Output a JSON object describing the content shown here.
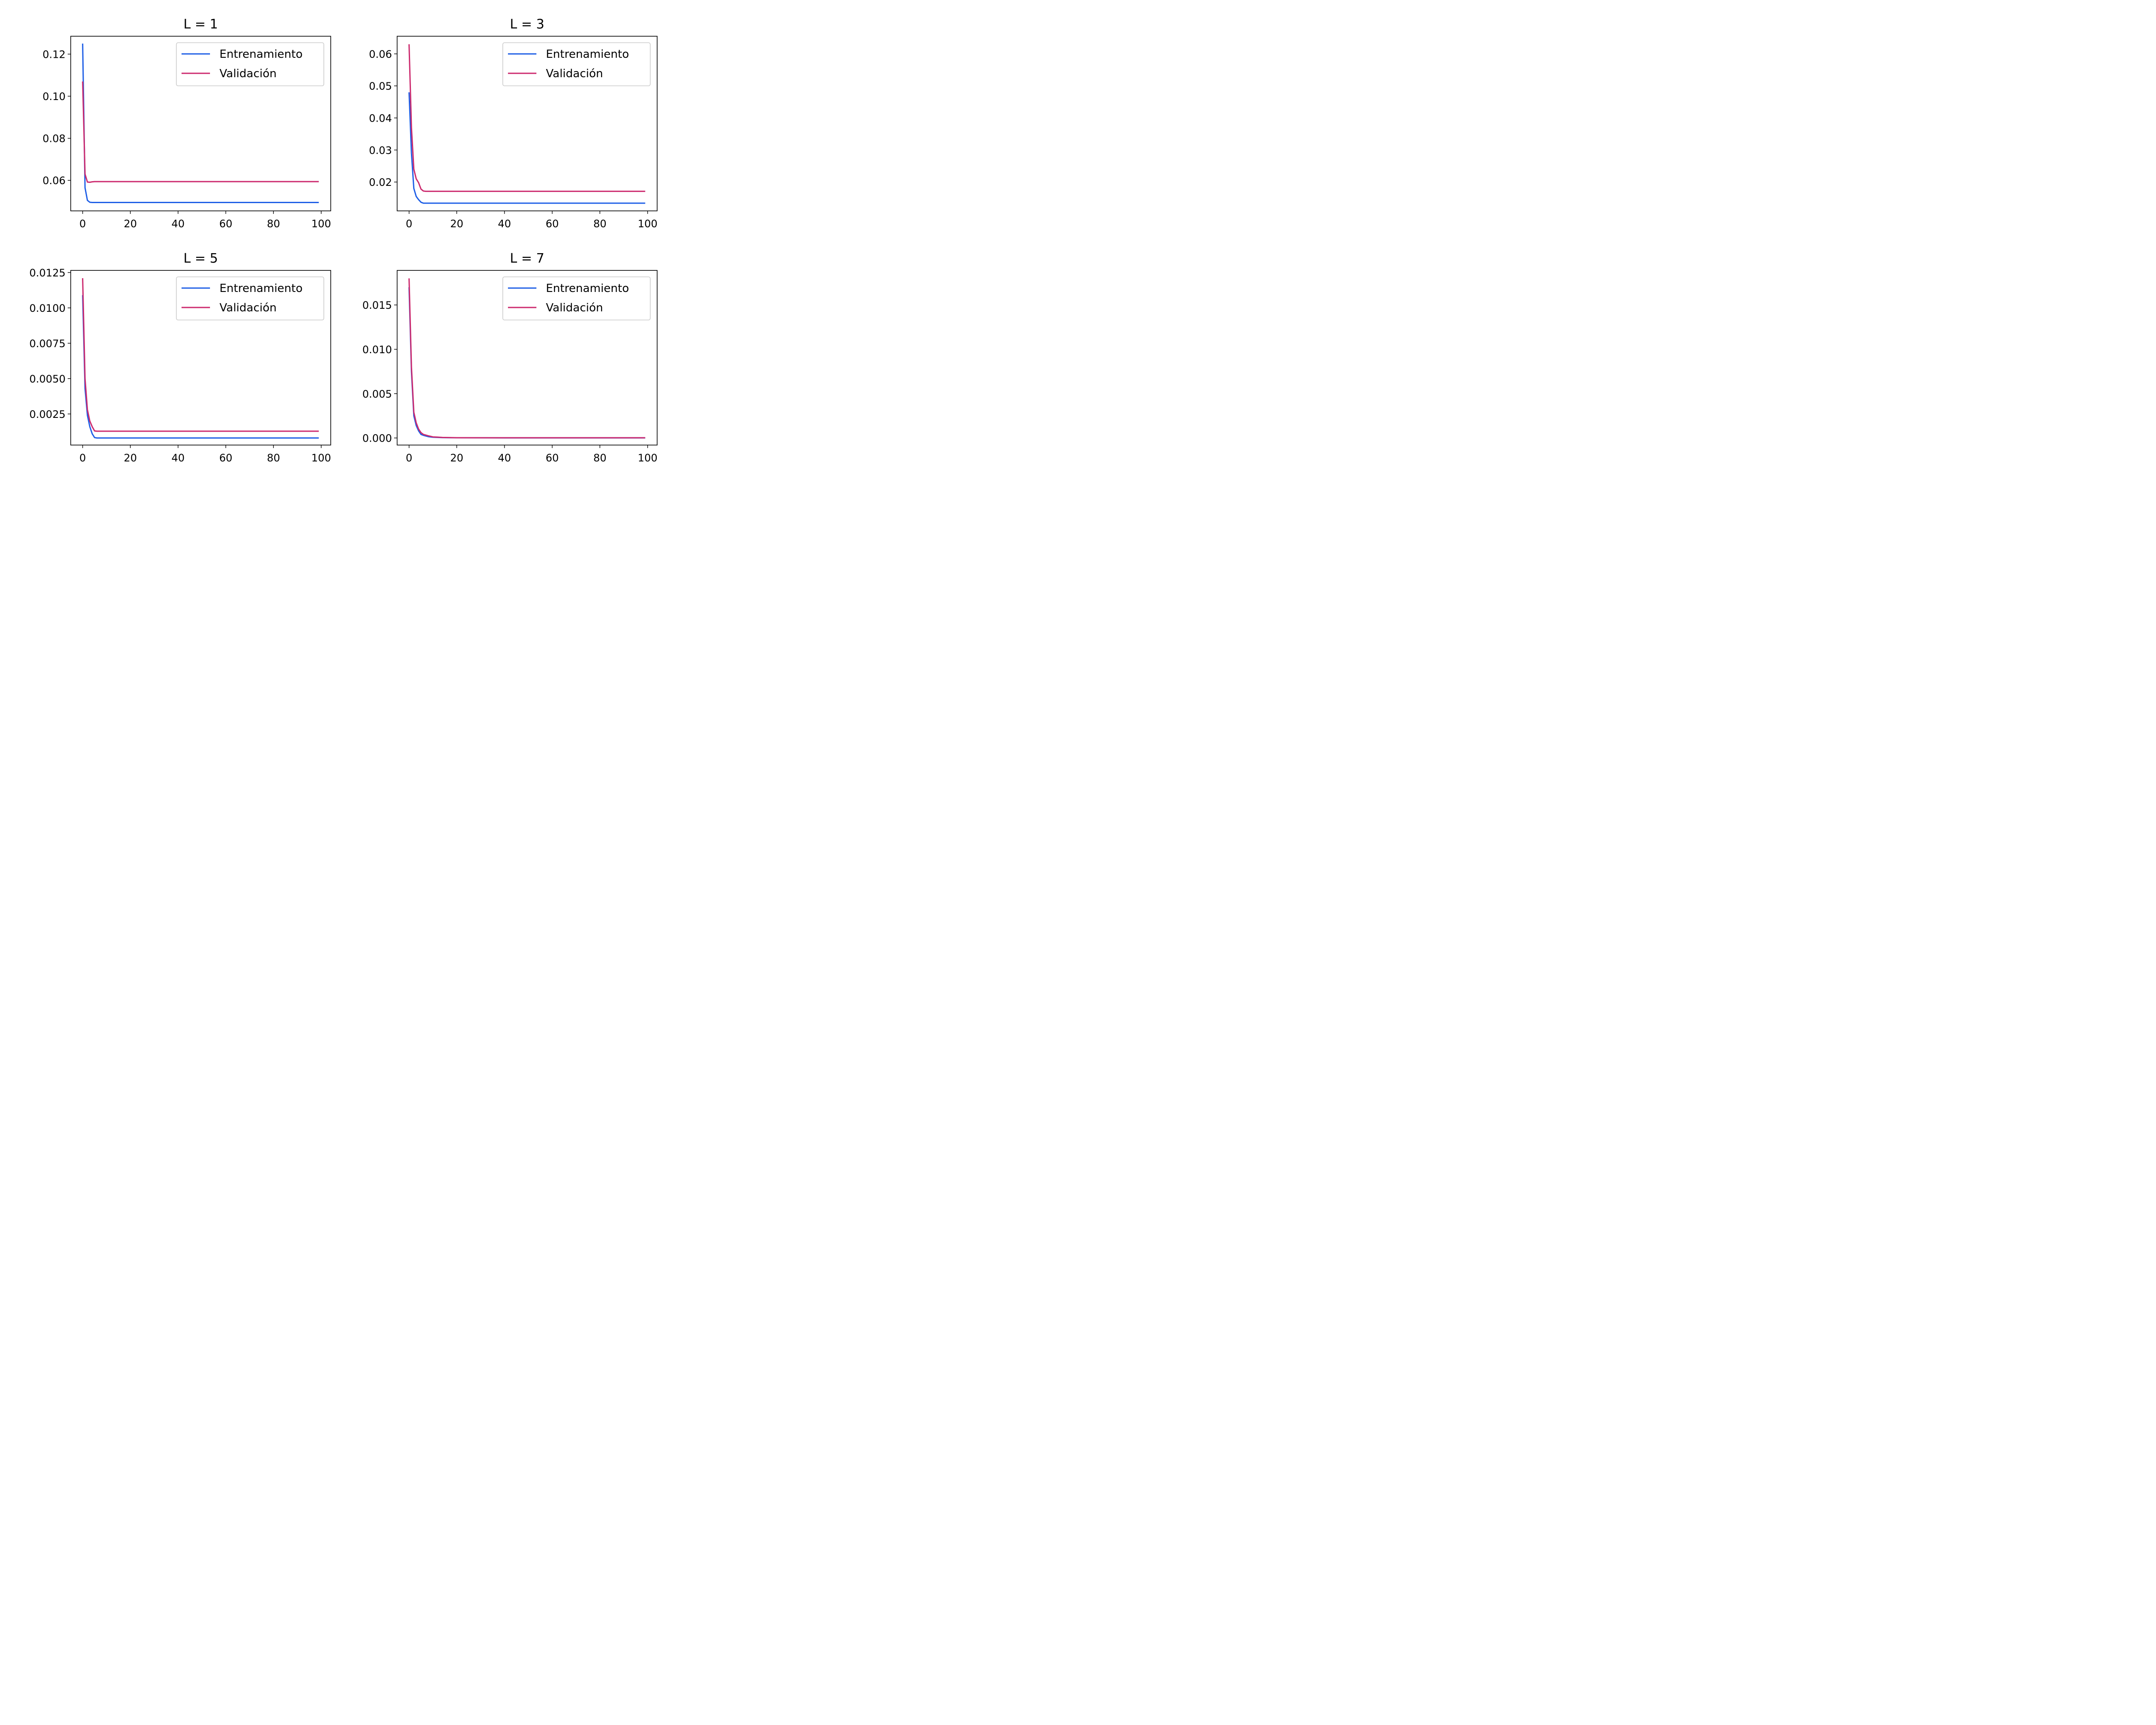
{
  "chart_data": [
    {
      "type": "line",
      "title": "L = 1",
      "xlabel": "",
      "ylabel": "",
      "xlim": [
        -5,
        104
      ],
      "ylim": [
        0.0455,
        0.1285
      ],
      "xticks": [
        0,
        20,
        40,
        60,
        80,
        100
      ],
      "xtick_labels": [
        "0",
        "20",
        "40",
        "60",
        "80",
        "100"
      ],
      "yticks": [
        0.06,
        0.08,
        0.1,
        0.12
      ],
      "ytick_labels": [
        "0.06",
        "0.08",
        "0.10",
        "0.12"
      ],
      "grid": false,
      "legend": "upper-right",
      "series": [
        {
          "name": "Entrenamiento",
          "color": "#1f5fe6",
          "x": [
            0,
            1,
            2,
            3,
            4,
            5,
            6,
            8,
            10,
            20,
            40,
            60,
            80,
            99
          ],
          "y": [
            0.125,
            0.0565,
            0.0505,
            0.0496,
            0.0495,
            0.0495,
            0.0495,
            0.0495,
            0.0495,
            0.0495,
            0.0495,
            0.0495,
            0.0495,
            0.0495
          ]
        },
        {
          "name": "Validación",
          "color": "#cc2a6e",
          "x": [
            0,
            1,
            2,
            3,
            4,
            5,
            6,
            8,
            10,
            20,
            40,
            60,
            80,
            99
          ],
          "y": [
            0.107,
            0.063,
            0.0592,
            0.0591,
            0.0593,
            0.0594,
            0.0594,
            0.0594,
            0.0594,
            0.0594,
            0.0594,
            0.0594,
            0.0594,
            0.0594
          ]
        }
      ]
    },
    {
      "type": "line",
      "title": "L = 3",
      "xlabel": "",
      "ylabel": "",
      "xlim": [
        -5,
        104
      ],
      "ylim": [
        0.011,
        0.0655
      ],
      "xticks": [
        0,
        20,
        40,
        60,
        80,
        100
      ],
      "xtick_labels": [
        "0",
        "20",
        "40",
        "60",
        "80",
        "100"
      ],
      "yticks": [
        0.02,
        0.03,
        0.04,
        0.05,
        0.06
      ],
      "ytick_labels": [
        "0.02",
        "0.03",
        "0.04",
        "0.05",
        "0.06"
      ],
      "grid": false,
      "legend": "upper-right",
      "series": [
        {
          "name": "Entrenamiento",
          "color": "#1f5fe6",
          "x": [
            0,
            1,
            2,
            3,
            4,
            5,
            6,
            7,
            8,
            10,
            20,
            40,
            60,
            80,
            99
          ],
          "y": [
            0.048,
            0.029,
            0.018,
            0.0155,
            0.0145,
            0.0137,
            0.0134,
            0.0134,
            0.0134,
            0.0134,
            0.0134,
            0.0134,
            0.0134,
            0.0134,
            0.0134
          ]
        },
        {
          "name": "Validación",
          "color": "#cc2a6e",
          "x": [
            0,
            1,
            2,
            3,
            4,
            5,
            6,
            7,
            8,
            10,
            20,
            40,
            60,
            80,
            99
          ],
          "y": [
            0.063,
            0.037,
            0.024,
            0.021,
            0.0198,
            0.0178,
            0.0172,
            0.0171,
            0.0171,
            0.0171,
            0.0171,
            0.0171,
            0.0171,
            0.0171,
            0.0171
          ]
        }
      ]
    },
    {
      "type": "line",
      "title": "L = 5",
      "xlabel": "",
      "ylabel": "",
      "xlim": [
        -5,
        104
      ],
      "ylim": [
        0.0003,
        0.01265
      ],
      "xticks": [
        0,
        20,
        40,
        60,
        80,
        100
      ],
      "xtick_labels": [
        "0",
        "20",
        "40",
        "60",
        "80",
        "100"
      ],
      "yticks": [
        0.0025,
        0.005,
        0.0075,
        0.01,
        0.0125
      ],
      "ytick_labels": [
        "0.0025",
        "0.0050",
        "0.0075",
        "0.0100",
        "0.0125"
      ],
      "grid": false,
      "legend": "upper-right",
      "series": [
        {
          "name": "Entrenamiento",
          "color": "#1f5fe6",
          "x": [
            0,
            1,
            2,
            3,
            4,
            5,
            6,
            8,
            10,
            20,
            40,
            60,
            80,
            99
          ],
          "y": [
            0.0109,
            0.0043,
            0.0024,
            0.0016,
            0.0011,
            0.00083,
            0.0008,
            0.0008,
            0.0008,
            0.0008,
            0.0008,
            0.0008,
            0.0008,
            0.0008
          ]
        },
        {
          "name": "Validación",
          "color": "#cc2a6e",
          "x": [
            0,
            1,
            2,
            3,
            4,
            5,
            6,
            8,
            10,
            20,
            40,
            60,
            80,
            99
          ],
          "y": [
            0.0121,
            0.005,
            0.0028,
            0.002,
            0.0016,
            0.0013,
            0.00128,
            0.00128,
            0.00128,
            0.00128,
            0.00128,
            0.00128,
            0.00128,
            0.00128
          ]
        }
      ]
    },
    {
      "type": "line",
      "title": "L = 7",
      "xlabel": "",
      "ylabel": "",
      "xlim": [
        -5,
        104
      ],
      "ylim": [
        -0.0008,
        0.0189
      ],
      "xticks": [
        0,
        20,
        40,
        60,
        80,
        100
      ],
      "xtick_labels": [
        "0",
        "20",
        "40",
        "60",
        "80",
        "100"
      ],
      "yticks": [
        0.0,
        0.005,
        0.01,
        0.015
      ],
      "ytick_labels": [
        "0.000",
        "0.005",
        "0.010",
        "0.015"
      ],
      "grid": false,
      "legend": "upper-right",
      "series": [
        {
          "name": "Entrenamiento",
          "color": "#1f5fe6",
          "x": [
            0,
            1,
            2,
            3,
            4,
            5,
            6,
            8,
            10,
            14,
            20,
            40,
            60,
            80,
            99
          ],
          "y": [
            0.017,
            0.0075,
            0.0025,
            0.0014,
            0.0008,
            0.0004,
            0.0003,
            0.00015,
            8e-05,
            4e-05,
            2e-05,
            1e-05,
            1e-05,
            1e-05,
            1e-05
          ]
        },
        {
          "name": "Validación",
          "color": "#cc2a6e",
          "x": [
            0,
            1,
            2,
            3,
            4,
            5,
            6,
            8,
            10,
            14,
            20,
            40,
            60,
            80,
            99
          ],
          "y": [
            0.018,
            0.008,
            0.0029,
            0.0017,
            0.001,
            0.0006,
            0.0004,
            0.00025,
            0.00012,
            6e-05,
            3e-05,
            2e-05,
            2e-05,
            2e-05,
            2e-05
          ]
        }
      ]
    }
  ]
}
